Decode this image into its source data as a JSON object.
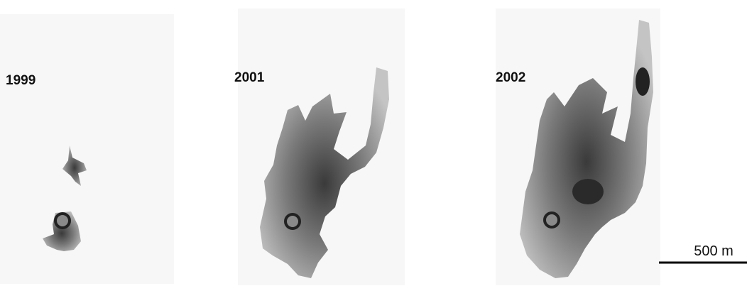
{
  "panels": [
    {
      "label": "1999"
    },
    {
      "label": "2001"
    },
    {
      "label": "2002"
    }
  ],
  "scale_bar": {
    "label": "500 m"
  }
}
